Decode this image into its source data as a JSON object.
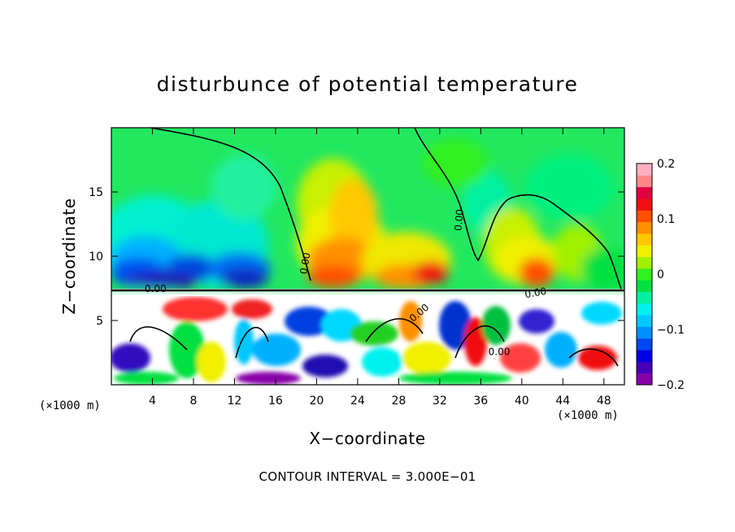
{
  "chart_data": {
    "type": "heatmap",
    "title": "disturbunce of potential temperature",
    "xlabel": "X−coordinate",
    "ylabel": "Z−coordinate",
    "x_unit": "(×1000 m)",
    "y_unit": "(×1000 m)",
    "xlim": [
      0,
      50
    ],
    "ylim": [
      0,
      20
    ],
    "x_ticks": [
      4,
      8,
      12,
      16,
      20,
      24,
      28,
      32,
      36,
      40,
      44,
      48
    ],
    "y_ticks": [
      5,
      10,
      15
    ],
    "colorbar": {
      "min": -0.2,
      "max": 0.2,
      "tick_values": [
        0.2,
        0.1,
        0,
        -0.1,
        -0.2
      ],
      "tick_labels": [
        "0.2",
        "0.1",
        "0",
        "−0.1",
        "−0.2"
      ],
      "colors": [
        "#8800a8",
        "#4400b8",
        "#0000e0",
        "#0048f0",
        "#0090ff",
        "#00c8ff",
        "#00f0f0",
        "#00f0a0",
        "#00e040",
        "#30f020",
        "#a0f000",
        "#f0f000",
        "#ffc800",
        "#ff9000",
        "#ff5000",
        "#f01010",
        "#e00040",
        "#ff8888",
        "#ffb0c0"
      ]
    },
    "contour_labels": [
      "0.00",
      "0.00",
      "0.00",
      "0.00",
      "0.00",
      "0.00"
    ],
    "contour_interval_text": "CONTOUR INTERVAL = 3.000E−01",
    "grid": false
  }
}
